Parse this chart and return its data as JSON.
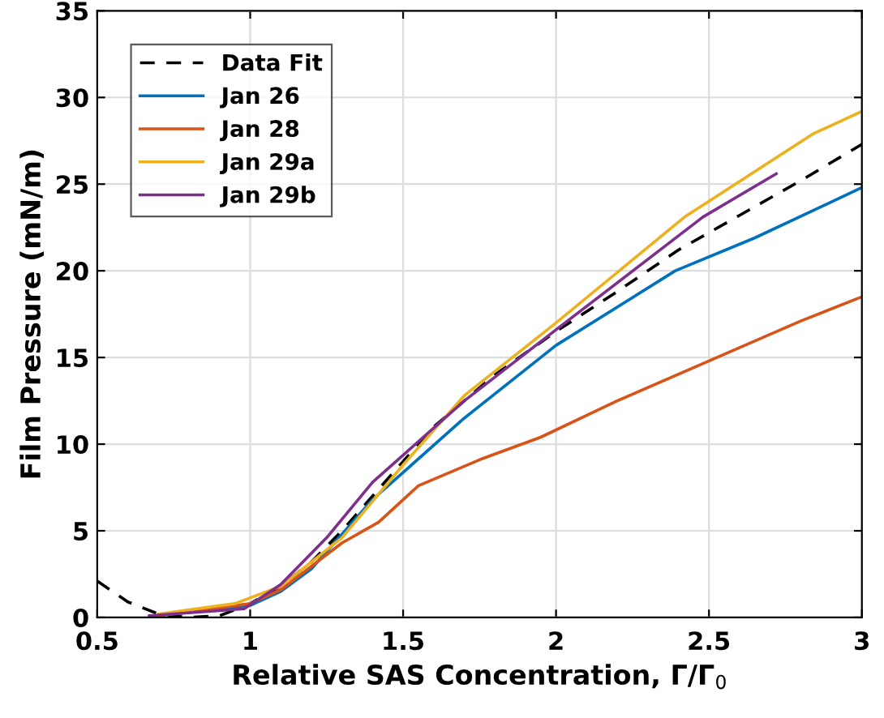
{
  "chart_data": {
    "type": "line",
    "xlabel": "Relative SAS Concentration, Γ/Γ$_{0}$",
    "ylabel": "Film Pressure (mN/m)",
    "xlim": [
      0.5,
      3
    ],
    "ylim": [
      0,
      35
    ],
    "xticks": [
      0.5,
      1,
      1.5,
      2,
      2.5,
      3
    ],
    "yticks": [
      0,
      5,
      10,
      15,
      20,
      25,
      30,
      35
    ],
    "grid": true,
    "legend": "top left",
    "marker": "none",
    "series": [
      {
        "name": "Data Fit",
        "color": "#000000",
        "line_style": "dashed",
        "x": [
          0.5,
          0.6,
          0.7,
          0.8,
          0.9,
          1,
          1.1,
          1.2,
          1.3,
          1.4,
          1.5,
          1.6,
          1.8,
          2,
          2.2,
          2.4,
          2.6,
          2.8,
          3
        ],
        "values": [
          2.1,
          0.9,
          0.2,
          0,
          0.1,
          0.8,
          1.8,
          3.2,
          5,
          7,
          9,
          11,
          14,
          16.5,
          18.8,
          21.2,
          23.2,
          25.2,
          27.3
        ]
      },
      {
        "name": "Jan 26",
        "color": "#0072bd",
        "x": [
          0.7,
          1,
          1.1,
          1.2,
          1.4,
          1.7,
          2,
          2.39,
          2.65,
          3
        ],
        "values": [
          0.1,
          0.7,
          1.5,
          2.8,
          6.8,
          11.5,
          15.7,
          20,
          21.9,
          24.8
        ]
      },
      {
        "name": "Jan 28",
        "color": "#d95319",
        "x": [
          0.7,
          1,
          1.1,
          1.3,
          1.42,
          1.55,
          1.75,
          1.95,
          2.2,
          2.5,
          2.8,
          3
        ],
        "values": [
          0.1,
          0.8,
          1.6,
          4.3,
          5.5,
          7.6,
          9.1,
          10.4,
          12.5,
          14.8,
          17.1,
          18.5
        ]
      },
      {
        "name": "Jan 29a",
        "color": "#edb120",
        "x": [
          0.7,
          0.95,
          1.1,
          1.3,
          1.5,
          1.7,
          2,
          2.42,
          2.84,
          3
        ],
        "values": [
          0.2,
          0.8,
          1.8,
          4.6,
          8.8,
          12.8,
          17,
          23.1,
          27.9,
          29.2
        ]
      },
      {
        "name": "Jan 29b",
        "color": "#7e2f8e",
        "x": [
          0.67,
          0.98,
          1.1,
          1.25,
          1.4,
          1.7,
          2,
          2.48,
          2.72
        ],
        "values": [
          0.1,
          0.5,
          1.9,
          4.6,
          7.8,
          12.5,
          16.6,
          23.1,
          25.6
        ]
      }
    ]
  }
}
